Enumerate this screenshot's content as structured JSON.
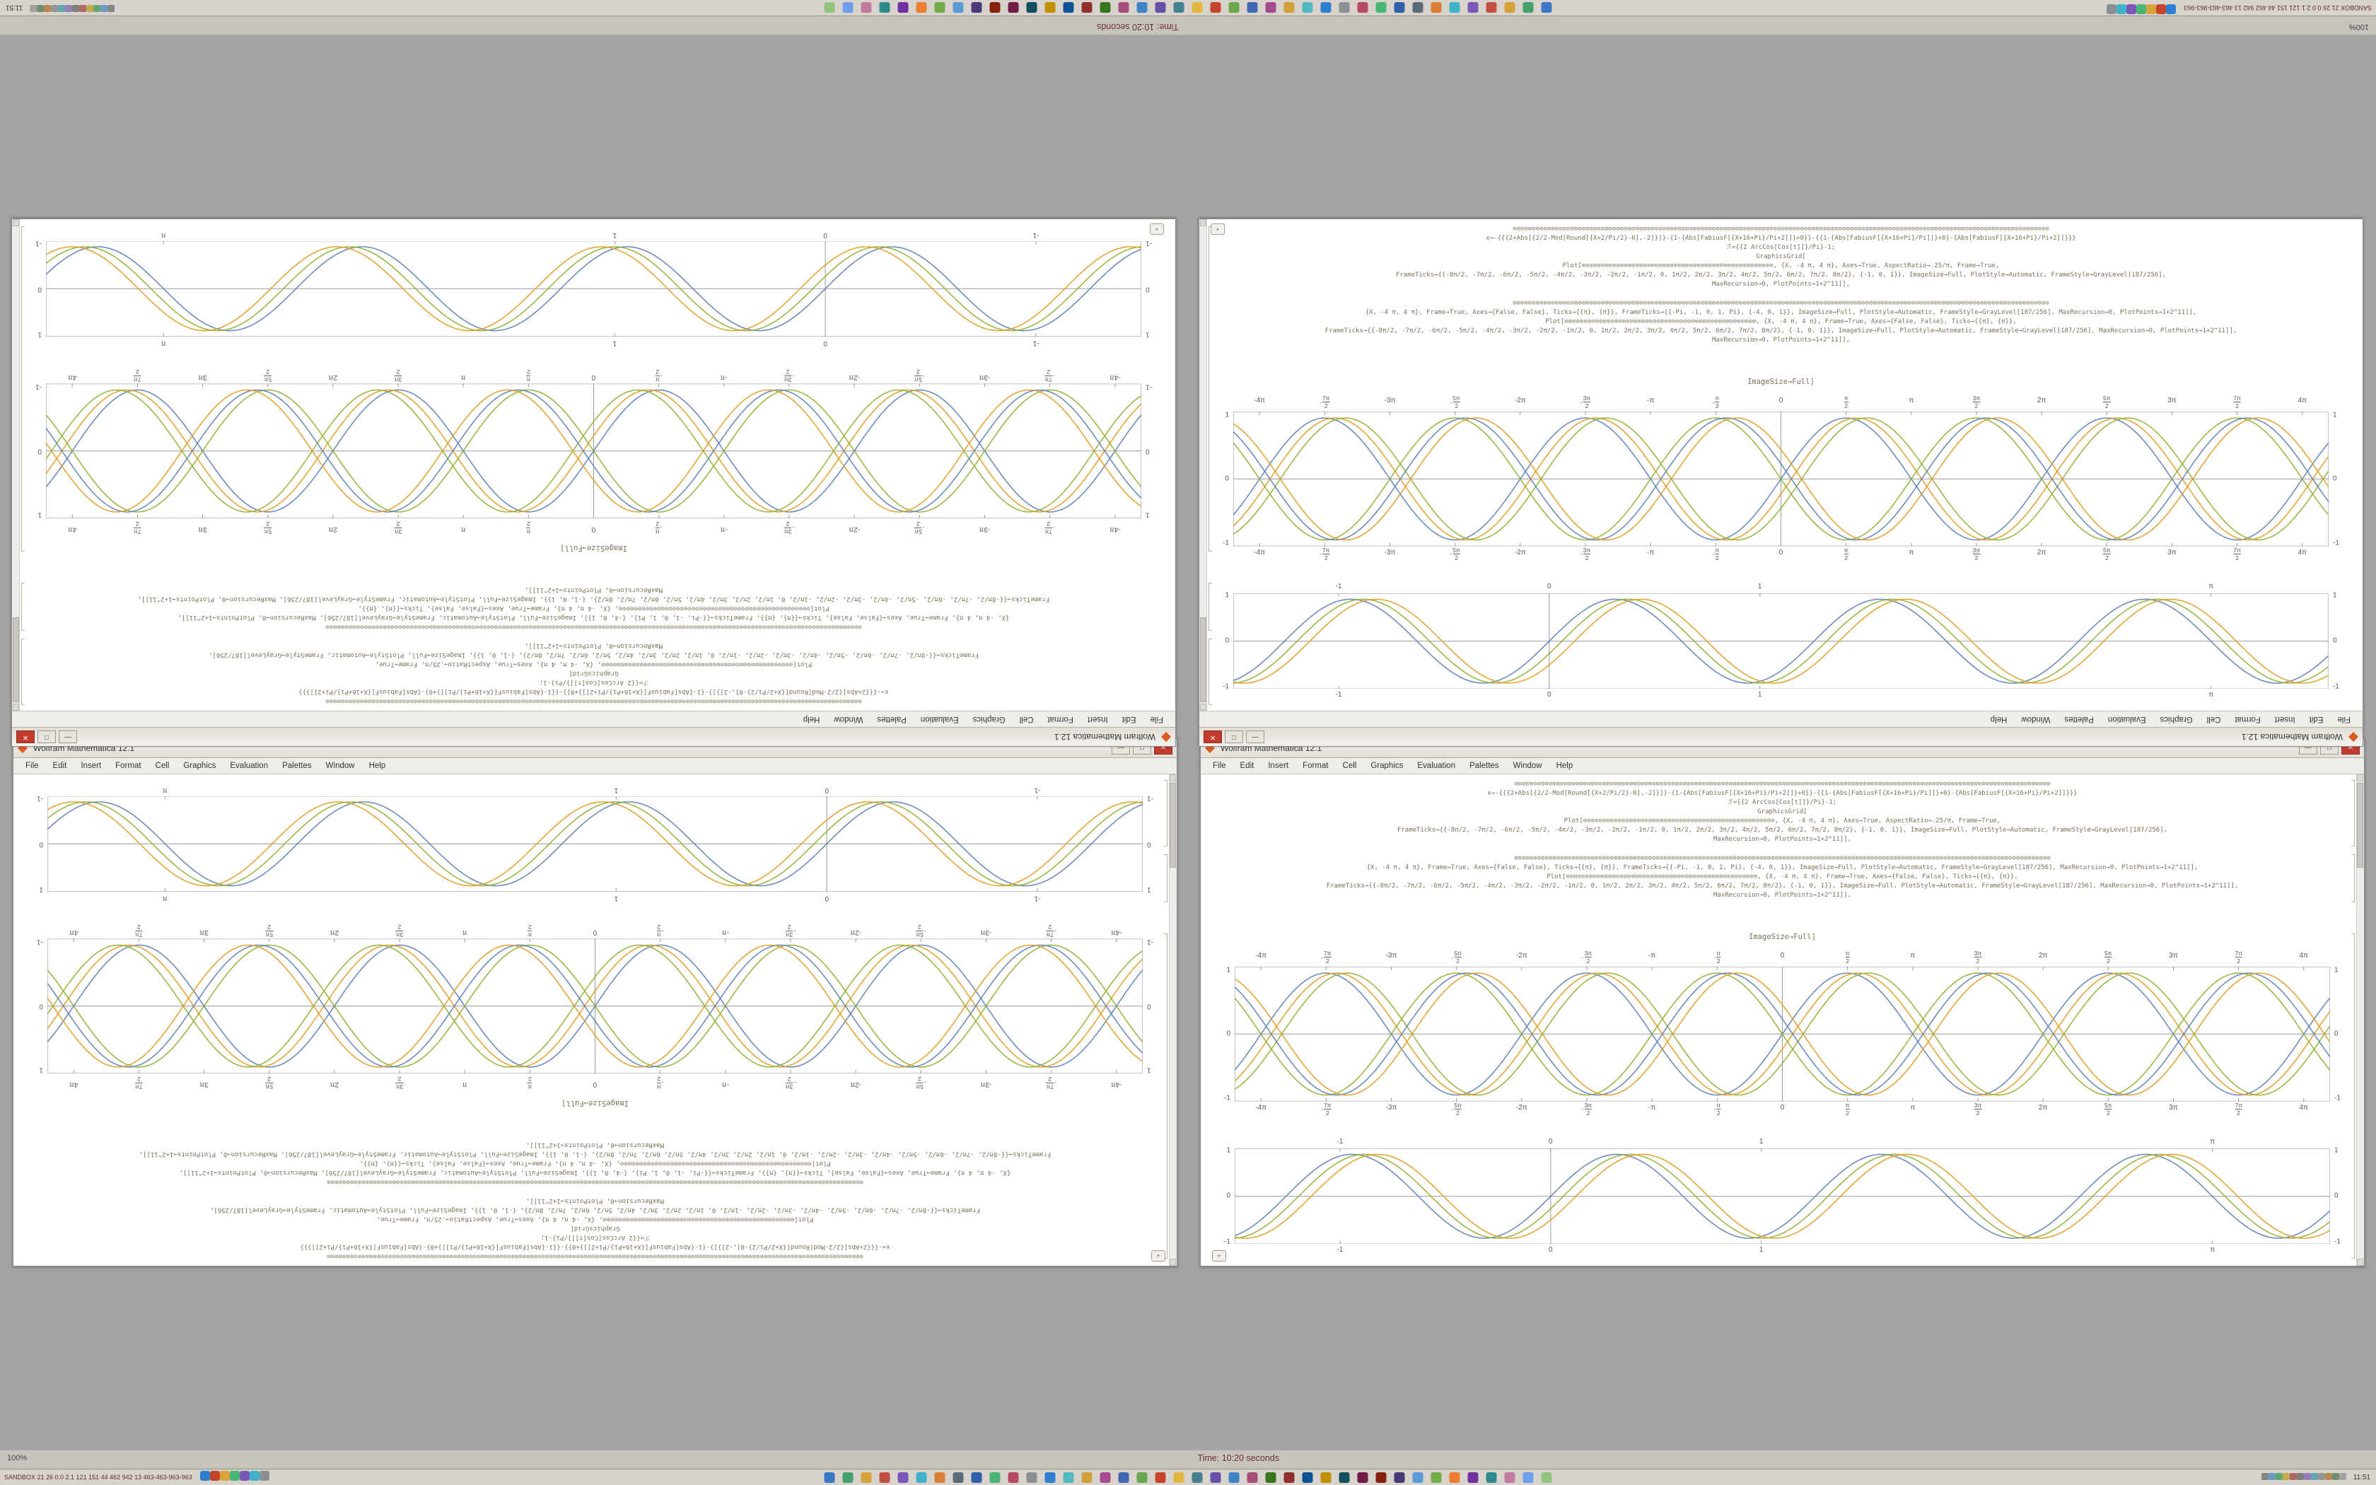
{
  "desktop": {
    "background": "#a3a3a3"
  },
  "status_bar": {
    "zoom": "100%",
    "time_label": "Time: 10:20 seconds"
  },
  "taskbar": {
    "stats_left": "SANDBOX 21 26 0.0 2.1 121 151 44 462 942 13 463-463-963-963",
    "clock": "11:51",
    "left_icons": [
      "#2f7fd0",
      "#c4452c",
      "#d8a33a",
      "#49b675",
      "#7a58b8",
      "#3fb3c9",
      "#8a8f94"
    ],
    "center_icons": [
      "#3b78c3",
      "#45a16b",
      "#d8a33a",
      "#c44f45",
      "#7a58b8",
      "#3fb3c9",
      "#d87f35",
      "#5a6b7a",
      "#2f5fa8",
      "#49b675",
      "#b84a64",
      "#8a8f94",
      "#2f7fd0",
      "#52b8bf",
      "#d0a03b",
      "#a64a90",
      "#4268b3",
      "#6aa84f",
      "#c4452c",
      "#e0b83d",
      "#45818e",
      "#674ea7",
      "#3d85c6",
      "#a64d79",
      "#38761d",
      "#8f2f2f",
      "#0b5394",
      "#bf9000",
      "#134f5c",
      "#741b47",
      "#85200c",
      "#4c3a78",
      "#5b9bd5",
      "#70ad47",
      "#ed7d31",
      "#7030a0",
      "#2e8b8b",
      "#c27ba0",
      "#6d9eeb",
      "#93c47d"
    ],
    "tray_icons": [
      "#777777",
      "#5a8fc0",
      "#4a9e62",
      "#c0a23a",
      "#a95555",
      "#6f6f6f",
      "#8b6fb8",
      "#4f9fae",
      "#888888",
      "#b07a3a",
      "#5f7f5f",
      "#9a9a9a"
    ]
  },
  "window": {
    "title": "Wolfram Mathematica 12.1",
    "menu": [
      "File",
      "Edit",
      "Insert",
      "Format",
      "Cell",
      "Graphics",
      "Evaluation",
      "Palettes",
      "Window",
      "Help"
    ],
    "buttons": {
      "minimize": "—",
      "maximize": "□",
      "close": "✕"
    },
    "code_block1": [
      "⊙⊙⊙⊙⊙⊙⊙⊙⊙⊙⊙⊙⊙⊙⊙⊙⊙⊙⊙⊙⊙⊙⊙⊙⊙⊙⊙⊙⊙⊙⊙⊙⊙⊙⊙⊙⊙⊙⊙⊙⊙⊙⊙⊙⊙⊙⊙⊙⊙⊙⊙⊙⊙⊙⊙⊙⊙⊙⊙⊙⊙⊙⊙⊙⊙⊙⊙⊙⊙⊙⊙⊙⊙⊙⊙⊙⊙⊙⊙⊙⊙⊙⊙⊙⊙⊙⊙⊙⊙⊙⊙⊙⊙⊙⊙⊙⊙⊙⊙⊙⊙⊙⊙⊙⊙⊙⊙⊙⊙⊙⊙⊙⊙⊙⊙⊙⊙⊙⊙⊙⊙⊙⊙⊙⊙⊙⊙⊙⊙⊙⊙⊙⊙⊙⊙⊙⊙⊙⊙⊙",
      "x→-{{{2+Abs[{2/2-Mod[Round[{X+2/Pi/2}-0],-2]}]}-{1-{Abs[FabiusF[{X+16+Pi}/Pi+2]]}+0}}-{{1-{Abs[FabiusF[{X+16+Pi}/Pi]]}+0}-{Abs[FabiusF[{X+16+Pi}/Pi+2]]}}}",
      "ℱ={{2 ArcCos[Cos[t]]}/Pi}-1;",
      "GraphicsGrid[",
      "Plot[⊙⊙⊙⊙⊙⊙⊙⊙⊙⊙⊙⊙⊙⊙⊙⊙⊙⊙⊙⊙⊙⊙⊙⊙⊙⊙⊙⊙⊙⊙⊙⊙⊙⊙⊙⊙⊙⊙⊙⊙⊙⊙⊙⊙⊙⊙⊙⊙⊙⊙, {X, -4 π, 4 π}, Axes→True, AspectRatio→.25/π, Frame→True,",
      "FrameTicks→{{-8π/2, -7π/2, -6π/2, -5π/2, -4π/2, -3π/2, -2π/2, -1π/2, 0, 1π/2, 2π/2, 3π/2, 4π/2, 5π/2, 6π/2, 7π/2, 8π/2}, {-1, 0, 1}}, ImageSize→Full, PlotStyle→Automatic, FrameStyle→GrayLevel[187/256],",
      "MaxRecursion→0, PlotPoints→1+2^11]],"
    ],
    "code_block2": [
      "⊙⊙⊙⊙⊙⊙⊙⊙⊙⊙⊙⊙⊙⊙⊙⊙⊙⊙⊙⊙⊙⊙⊙⊙⊙⊙⊙⊙⊙⊙⊙⊙⊙⊙⊙⊙⊙⊙⊙⊙⊙⊙⊙⊙⊙⊙⊙⊙⊙⊙⊙⊙⊙⊙⊙⊙⊙⊙⊙⊙⊙⊙⊙⊙⊙⊙⊙⊙⊙⊙⊙⊙⊙⊙⊙⊙⊙⊙⊙⊙⊙⊙⊙⊙⊙⊙⊙⊙⊙⊙⊙⊙⊙⊙⊙⊙⊙⊙⊙⊙⊙⊙⊙⊙⊙⊙⊙⊙⊙⊙⊙⊙⊙⊙⊙⊙⊙⊙⊙⊙⊙⊙⊙⊙⊙⊙⊙⊙⊙⊙⊙⊙⊙⊙⊙⊙⊙⊙⊙⊙",
      "{X, -4 π, 4 π}, Frame→True, Axes→{False, False}, Ticks→{{π}, {π}}, FrameTicks→{{-Pi, -1, 0, 1, Pi}, {-4, 0, 1}}, ImageSize→Full, PlotStyle→Automatic, FrameStyle→GrayLevel[187/256], MaxRecursion→0, PlotPoints→1+2^11]],",
      "Plot[⊙⊙⊙⊙⊙⊙⊙⊙⊙⊙⊙⊙⊙⊙⊙⊙⊙⊙⊙⊙⊙⊙⊙⊙⊙⊙⊙⊙⊙⊙⊙⊙⊙⊙⊙⊙⊙⊙⊙⊙⊙⊙⊙⊙⊙⊙⊙⊙⊙⊙, {X, -4 π, 4 π}, Frame→True, Axes→{False, False}, Ticks→{{π}, {π}},",
      "FrameTicks→{{-8π/2, -7π/2, -6π/2, -5π/2, -4π/2, -3π/2, -2π/2, -1π/2, 0, 1π/2, 2π/2, 3π/2, 4π/2, 5π/2, 6π/2, 7π/2, 8π/2}, {-1, 0, 1}}, ImageSize→Full, PlotStyle→Automatic, FrameStyle→GrayLevel[187/256], MaxRecursion→0, PlotPoints→1+2^11]],",
      "MaxRecursion→0, PlotPoints→1+2^11]],"
    ],
    "imagesize_label": "ImageSize→Full]",
    "corner_button": "+"
  },
  "colors": {
    "curve_blue": "#5E81B5",
    "curve_mustard": "#E19C24",
    "curve_olive": "#8FB032",
    "close_red": "#c23b2d"
  },
  "chart_data": [
    {
      "type": "line",
      "title": "",
      "xlabel": "",
      "ylabel": "",
      "frame": true,
      "zero_vline": true,
      "x_range": [
        -13.2,
        13.2
      ],
      "ylim": [
        -1.05,
        1.05
      ],
      "amp": 0.95,
      "x_ticks": [
        "-4π",
        "-7π/2",
        "-3π",
        "-5π/2",
        "-2π",
        "-3π/2",
        "-π",
        "-π/2",
        "0",
        "π/2",
        "π",
        "3π/2",
        "2π",
        "5π/2",
        "3π",
        "7π/2",
        "4π"
      ],
      "x_tick_vals": [
        -12.566,
        -10.996,
        -9.425,
        -7.854,
        -6.283,
        -4.712,
        -3.142,
        -1.571,
        0,
        1.571,
        3.142,
        4.712,
        6.283,
        7.854,
        9.425,
        10.996,
        12.566
      ],
      "y_ticks": [
        "1",
        "0",
        "-1"
      ],
      "y_tick_vals": [
        1,
        0,
        -1
      ],
      "series": [
        {
          "name": "sin(x)",
          "color": "#5E81B5",
          "omega": 1,
          "phase": 0,
          "sign": 1
        },
        {
          "name": "sin(x-0.25)",
          "color": "#E19C24",
          "omega": 1,
          "phase": -0.25,
          "sign": 1
        },
        {
          "name": "sin(x-0.5)",
          "color": "#8FB032",
          "omega": 1,
          "phase": -0.5,
          "sign": 1
        },
        {
          "name": "-sin(x)",
          "color": "#8FB032",
          "omega": 1,
          "phase": 0,
          "sign": -1
        },
        {
          "name": "-sin(x-0.25)",
          "color": "#5E81B5",
          "omega": 1,
          "phase": -0.25,
          "sign": -1
        },
        {
          "name": "-sin(x-0.5)",
          "color": "#E19C24",
          "omega": 1,
          "phase": -0.5,
          "sign": -1
        }
      ]
    },
    {
      "type": "line",
      "title": "",
      "xlabel": "",
      "ylabel": "",
      "frame": true,
      "zero_vline": true,
      "x_range": [
        -1.5,
        3.7
      ],
      "ylim": [
        -1.05,
        1.05
      ],
      "amp": 0.92,
      "x_ticks": [
        "-1",
        "0",
        "1",
        "π"
      ],
      "x_tick_vals": [
        -1,
        0,
        1,
        3.14159
      ],
      "y_ticks": [
        "1",
        "0",
        "-1"
      ],
      "y_tick_vals": [
        1,
        0,
        -1
      ],
      "series": [
        {
          "name": "sin(5x)",
          "color": "#5E81B5",
          "omega": 5,
          "phase": 0,
          "sign": 1
        },
        {
          "name": "sin(5x-0.3)",
          "color": "#8FB032",
          "omega": 5,
          "phase": -0.3,
          "sign": 1
        },
        {
          "name": "sin(5x-0.6)",
          "color": "#E19C24",
          "omega": 5,
          "phase": -0.6,
          "sign": 1
        }
      ]
    }
  ]
}
